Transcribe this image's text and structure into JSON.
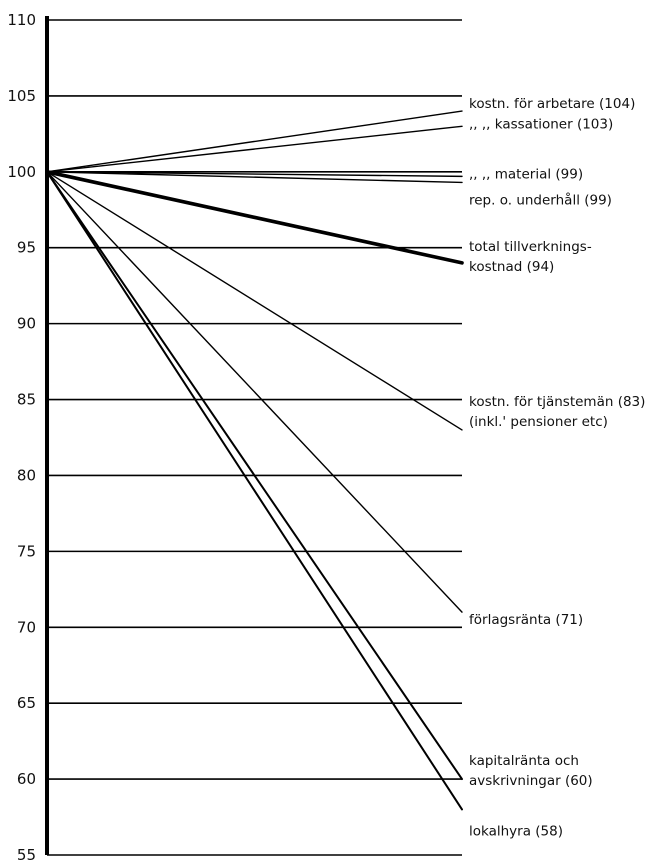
{
  "chart_data": {
    "type": "line",
    "title": "",
    "xlabel": "",
    "ylabel": "",
    "ylim": [
      55,
      110
    ],
    "yticks": [
      55,
      60,
      65,
      70,
      75,
      80,
      85,
      90,
      95,
      100,
      105,
      110
    ],
    "grid": true,
    "x": [
      0,
      1
    ],
    "series": [
      {
        "name": "kostn. för arbetare (104)",
        "label_lines": [
          "kostn. för arbetare (104)"
        ],
        "values": [
          100,
          104
        ],
        "weight": "thin"
      },
      {
        "name": ",, ,, kassationer (103)",
        "label_lines": [
          ",,     ,,  kassationer (103)"
        ],
        "values": [
          100,
          103
        ],
        "weight": "thin"
      },
      {
        "name": ",, ,, material (99)",
        "label_lines": [
          ",,     ,,  material (99)"
        ],
        "values": [
          100,
          99.7
        ],
        "weight": "thin"
      },
      {
        "name": "rep. o. underhåll (99)",
        "label_lines": [
          "rep. o. underhåll (99)"
        ],
        "values": [
          100,
          99.3
        ],
        "weight": "thin"
      },
      {
        "name": "total tillverkningskostnad (94)",
        "label_lines": [
          "total tillverknings-",
          "kostnad (94)"
        ],
        "values": [
          100,
          94
        ],
        "weight": "bold"
      },
      {
        "name": "kostn. för tjänstemän (83) (inkl. pensioner etc)",
        "label_lines": [
          "kostn. för tjänstemän (83)",
          "(inkl.' pensioner etc)"
        ],
        "values": [
          100,
          83
        ],
        "weight": "thin"
      },
      {
        "name": "förlagsränta (71)",
        "label_lines": [
          "förlagsränta (71)"
        ],
        "values": [
          100,
          71
        ],
        "weight": "thin"
      },
      {
        "name": "kapitalränta och avskrivningar (60)",
        "label_lines": [
          "kapitalränta och",
          "avskrivningar (60)"
        ],
        "values": [
          100,
          60
        ],
        "weight": "medium"
      },
      {
        "name": "lokalhyra (58)",
        "label_lines": [
          "lokalhyra (58)"
        ],
        "values": [
          100,
          58
        ],
        "weight": "medium"
      }
    ]
  }
}
